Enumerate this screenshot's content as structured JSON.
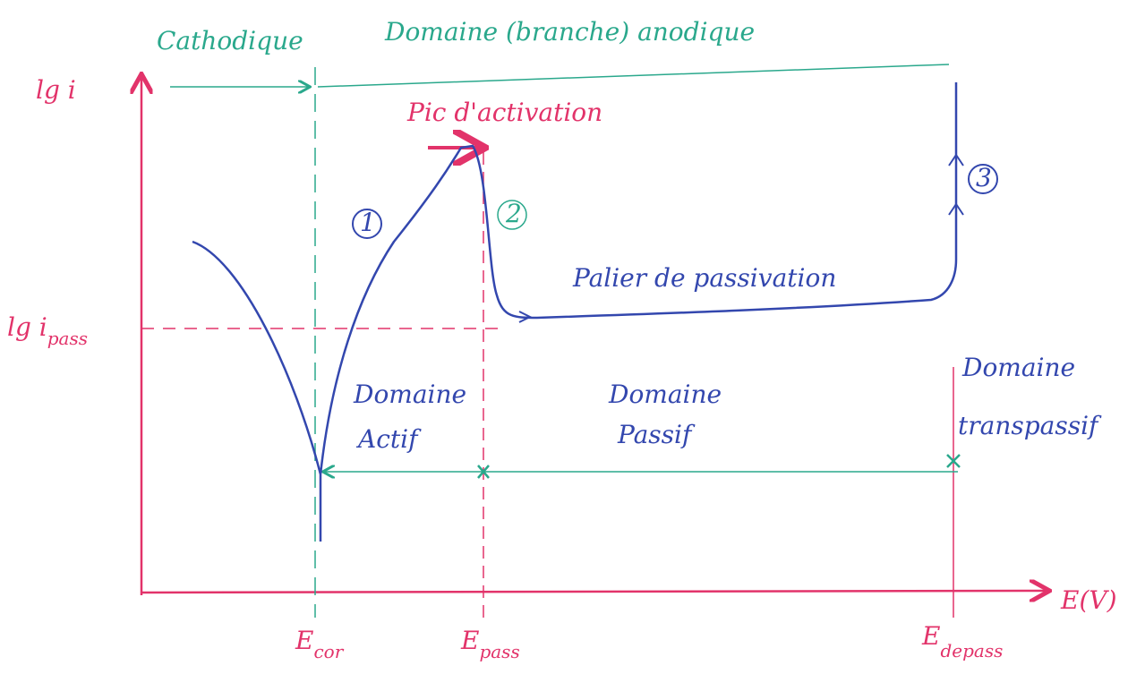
{
  "header": {
    "cathodic": "Cathodique",
    "anodic": "Domaine (branche) anodique"
  },
  "axes": {
    "y_label": "lg i",
    "x_label": "E(V)"
  },
  "level": {
    "label": "lg i",
    "subscript": "pass"
  },
  "potentials": [
    {
      "label": "E",
      "subscript": "cor"
    },
    {
      "label": "E",
      "subscript": "pass"
    },
    {
      "label": "E",
      "subscript": "depass"
    }
  ],
  "curve_labels": {
    "peak": "Pic d'activation",
    "plateau": "Palier de passivation",
    "steps": [
      "1",
      "2",
      "3"
    ]
  },
  "domains": [
    {
      "line1": "Domaine",
      "line2": "Actif"
    },
    {
      "line1": "Domaine",
      "line2": "Passif"
    },
    {
      "line1": "Domaine",
      "line2": "transpassif"
    }
  ]
}
